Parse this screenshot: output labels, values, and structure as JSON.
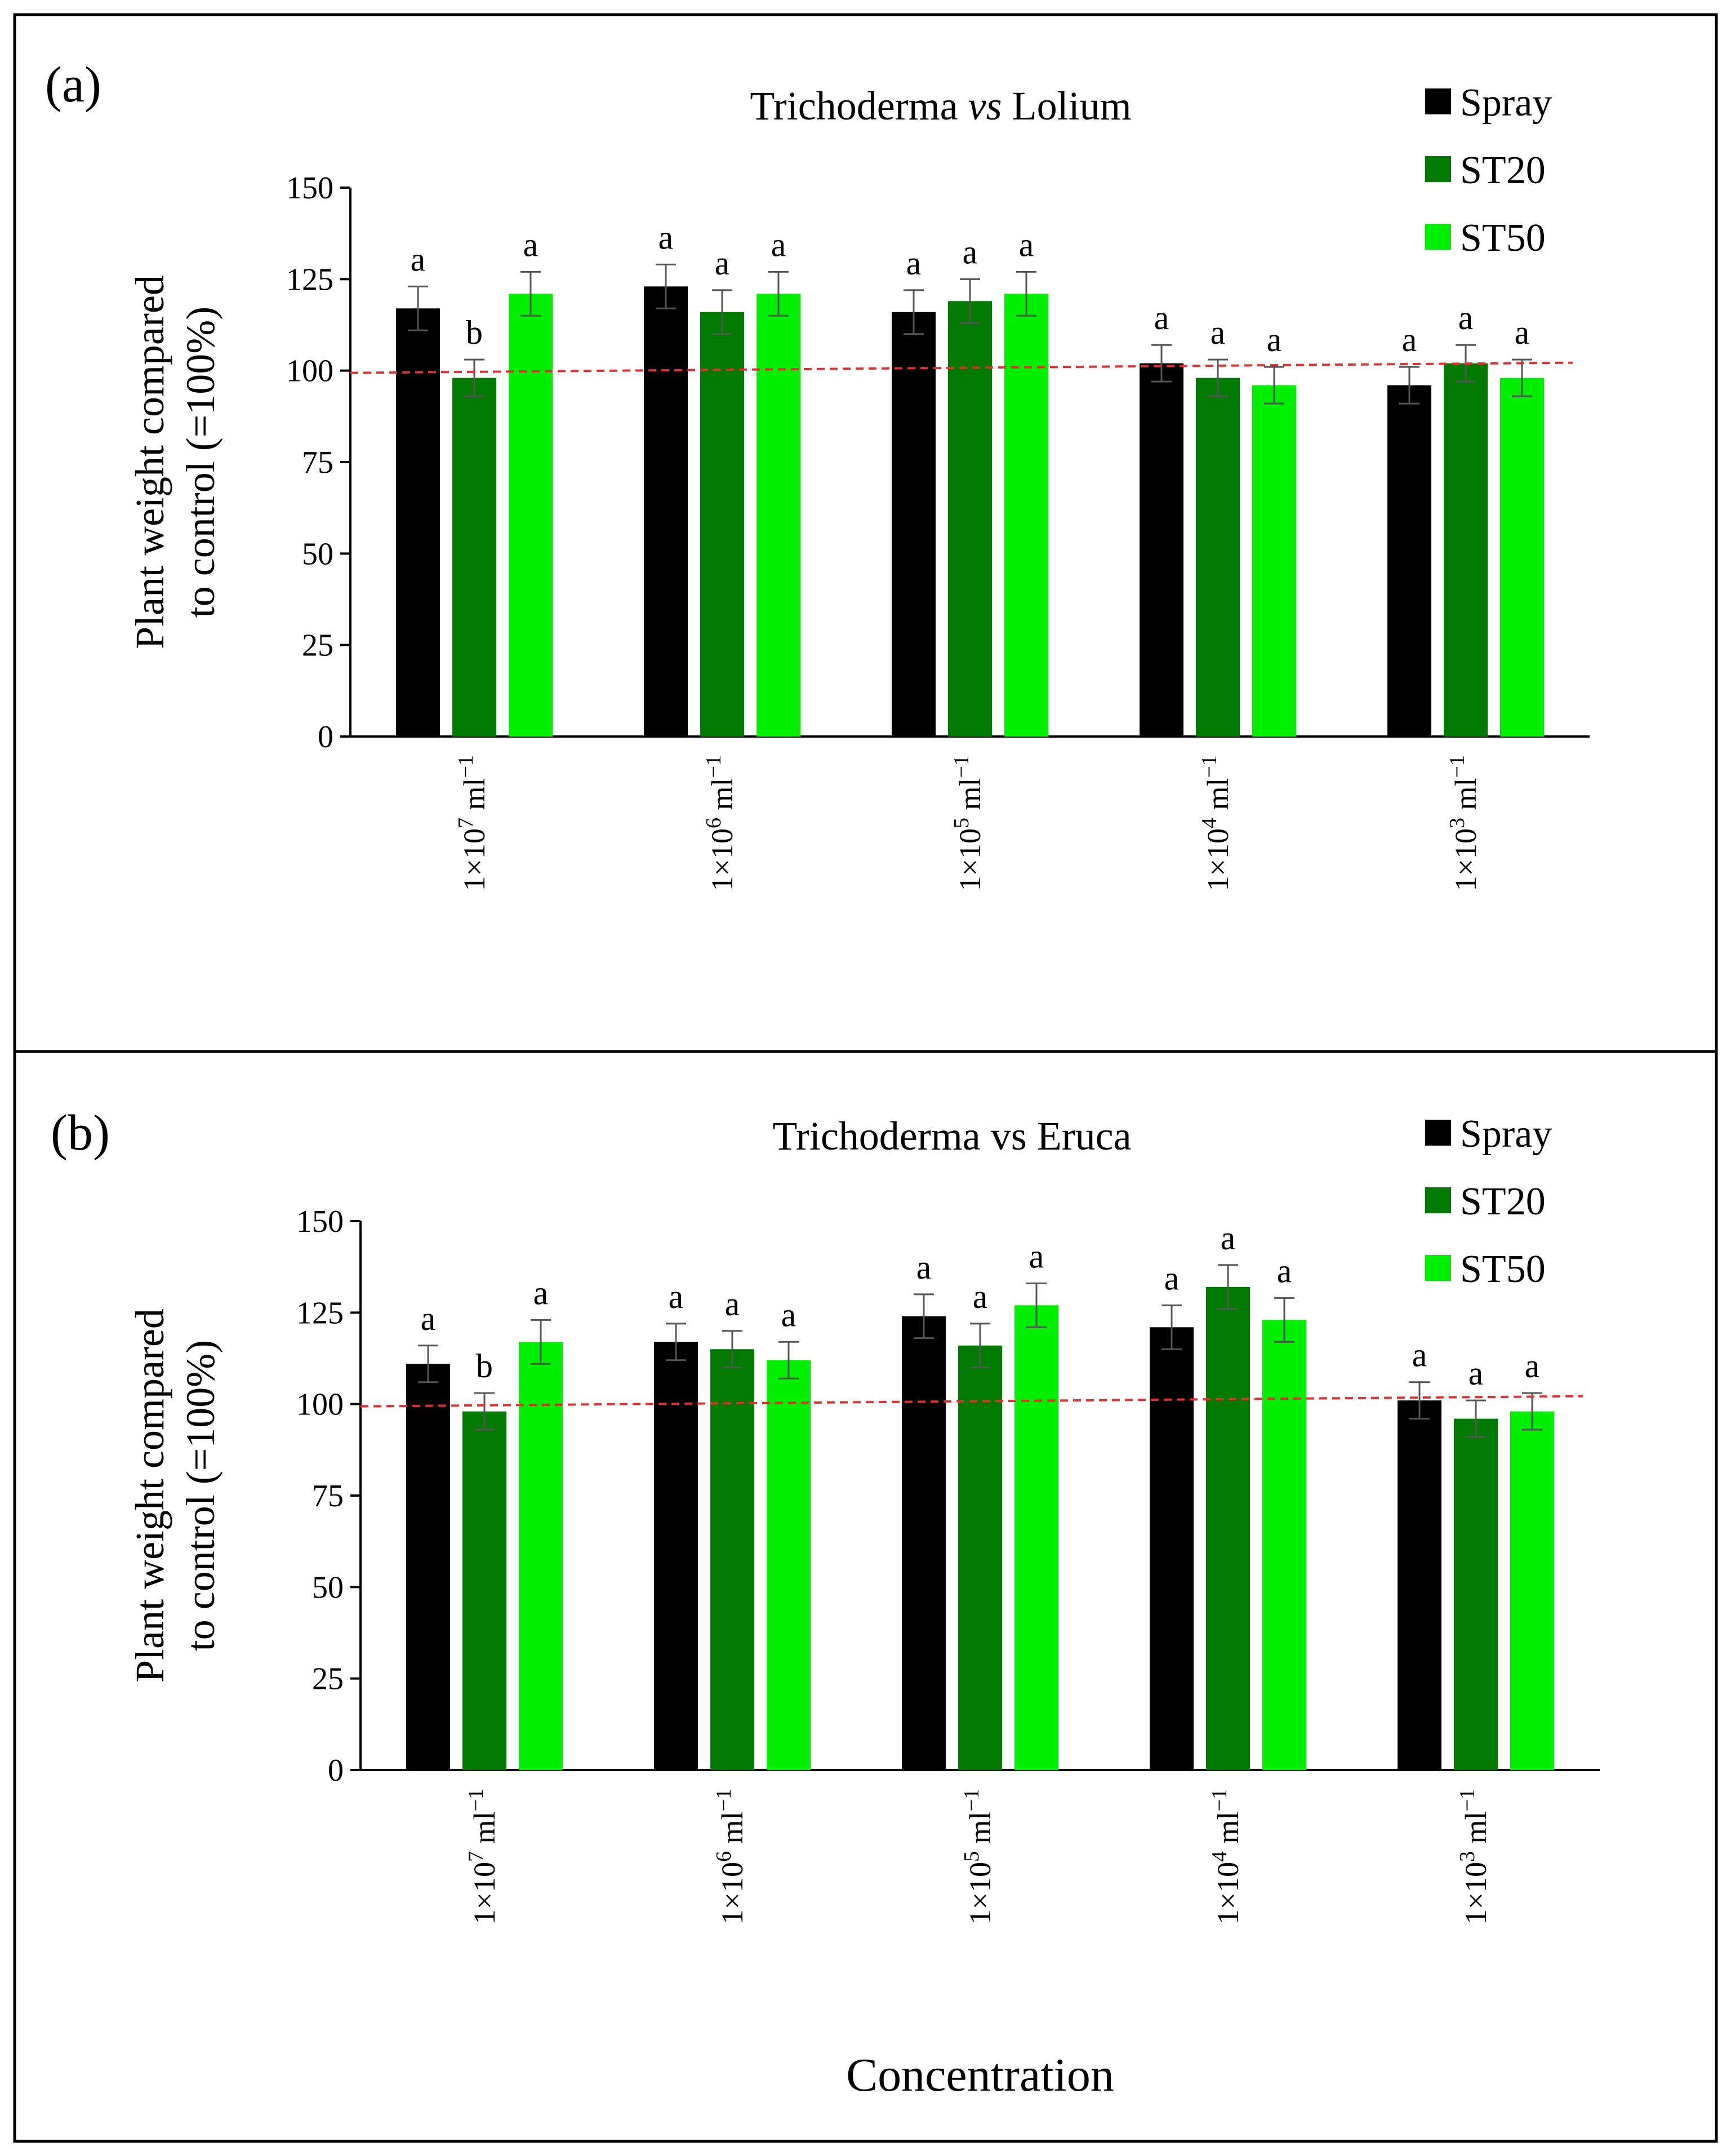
{
  "chart_data": [
    {
      "type": "bar",
      "panel_label": "(a)",
      "title_prefix": "Trichoderma ",
      "title_vs": "vs",
      "title_suffix": " Lolium",
      "ylabel_line1": "Plant weight compared",
      "ylabel_line2": "to control (=100%)",
      "xlabel": "",
      "ylim": [
        0,
        150
      ],
      "yticks": [
        "0",
        "25",
        "50",
        "75",
        "100",
        "125",
        "150"
      ],
      "reference_line": 100,
      "categories": [
        {
          "base": "1×10",
          "exp": "7",
          "unit": " ml",
          "unit_exp": "−1"
        },
        {
          "base": "1×10",
          "exp": "6",
          "unit": " ml",
          "unit_exp": "−1"
        },
        {
          "base": "1×10",
          "exp": "5",
          "unit": " ml",
          "unit_exp": "−1"
        },
        {
          "base": "1×10",
          "exp": "4",
          "unit": " ml",
          "unit_exp": "−1"
        },
        {
          "base": "1×10",
          "exp": "3",
          "unit": " ml",
          "unit_exp": "−1"
        }
      ],
      "series": [
        {
          "name": "Spray",
          "color": "#000000",
          "values": [
            117,
            123,
            116,
            102,
            96
          ],
          "errors": [
            6,
            6,
            6,
            5,
            5
          ],
          "letters": [
            "a",
            "a",
            "a",
            "a",
            "a"
          ]
        },
        {
          "name": "ST20",
          "color": "#007a00",
          "values": [
            98,
            116,
            119,
            98,
            102
          ],
          "errors": [
            5,
            6,
            6,
            5,
            5
          ],
          "letters": [
            "b",
            "a",
            "a",
            "a",
            "a"
          ]
        },
        {
          "name": "ST50",
          "color": "#00ee00",
          "values": [
            121,
            121,
            121,
            96,
            98
          ],
          "errors": [
            6,
            6,
            6,
            5,
            5
          ],
          "letters": [
            "a",
            "a",
            "a",
            "a",
            "a"
          ]
        }
      ]
    },
    {
      "type": "bar",
      "panel_label": "(b)",
      "title_prefix": "Trichoderma ",
      "title_vs": "vs",
      "title_suffix": " Eruca",
      "ylabel_line1": "Plant weight compared",
      "ylabel_line2": "to control (=100%)",
      "xlabel": "Concentration",
      "ylim": [
        0,
        150
      ],
      "yticks": [
        "0",
        "25",
        "50",
        "75",
        "100",
        "125",
        "150"
      ],
      "reference_line": 100,
      "categories": [
        {
          "base": "1×10",
          "exp": "7",
          "unit": " ml",
          "unit_exp": "−1"
        },
        {
          "base": "1×10",
          "exp": "6",
          "unit": " ml",
          "unit_exp": "−1"
        },
        {
          "base": "1×10",
          "exp": "5",
          "unit": " ml",
          "unit_exp": "−1"
        },
        {
          "base": "1×10",
          "exp": "4",
          "unit": " ml",
          "unit_exp": "−1"
        },
        {
          "base": "1×10",
          "exp": "3",
          "unit": " ml",
          "unit_exp": "−1"
        }
      ],
      "series": [
        {
          "name": "Spray",
          "color": "#000000",
          "values": [
            111,
            117,
            124,
            121,
            101
          ],
          "errors": [
            5,
            5,
            6,
            6,
            5
          ],
          "letters": [
            "a",
            "a",
            "a",
            "a",
            "a"
          ]
        },
        {
          "name": "ST20",
          "color": "#007a00",
          "values": [
            98,
            115,
            116,
            132,
            96
          ],
          "errors": [
            5,
            5,
            6,
            6,
            5
          ],
          "letters": [
            "b",
            "a",
            "a",
            "a",
            "a"
          ]
        },
        {
          "name": "ST50",
          "color": "#00ee00",
          "values": [
            117,
            112,
            127,
            123,
            98
          ],
          "errors": [
            6,
            5,
            6,
            6,
            5
          ],
          "letters": [
            "a",
            "a",
            "a",
            "a",
            "a"
          ]
        }
      ]
    }
  ]
}
